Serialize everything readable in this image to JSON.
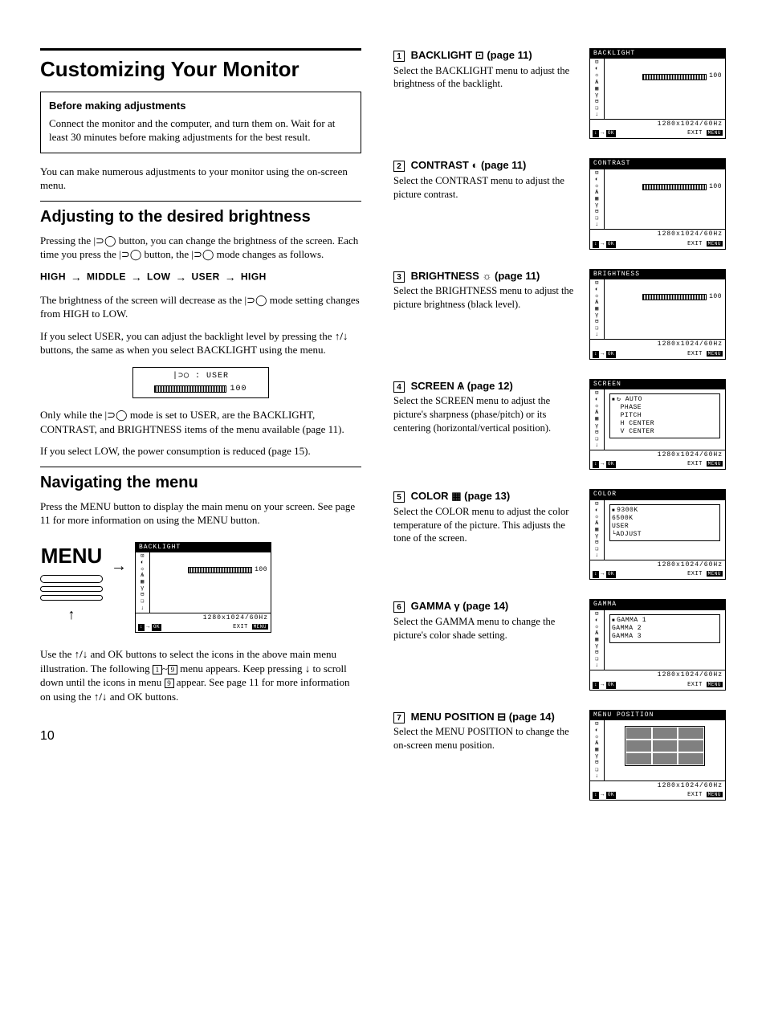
{
  "page_number": "10",
  "main_title": "Customizing Your Monitor",
  "before_box": {
    "title": "Before making adjustments",
    "body": "Connect the monitor and the computer, and turn them on. Wait for at least 30 minutes before making adjustments for the best result."
  },
  "intro_para": "You can make numerous adjustments to your monitor using the on-screen menu.",
  "section1": {
    "title": "Adjusting to the desired brightness",
    "para1_a": "Pressing the ",
    "para1_b": " button, you can change the brightness of the screen. Each time you press the ",
    "para1_c": " button, the ",
    "para1_d": " mode changes as follows.",
    "sequence": [
      "HIGH",
      "MIDDLE",
      "LOW",
      "USER",
      "HIGH"
    ],
    "para2_a": "The brightness of the screen will decrease as the ",
    "para2_b": " mode setting changes from HIGH to LOW.",
    "para3_a": "If you select USER, you can adjust the backlight level by pressing the ",
    "para3_b": " buttons, the same as when you select BACKLIGHT using the menu.",
    "user_box_label": ": USER",
    "user_box_value": "100",
    "para4_a": "Only while the ",
    "para4_b": " mode is set to USER, are the BACKLIGHT, CONTRAST, and BRIGHTNESS items of the menu available (page 11).",
    "para5": "If you select LOW, the power consumption is reduced (page 15)."
  },
  "section2": {
    "title": "Navigating the menu",
    "para1": "Press the MENU button to display the main menu on your screen. See page 11 for more information on using the MENU button.",
    "menu_label": "MENU",
    "para2_a": "Use the ",
    "para2_b": " and OK buttons to select the icons in the above main menu illustration. The following ",
    "para2_range_a": "1",
    "para2_range_b": "9",
    "para2_c": " menu appears. Keep pressing ",
    "para2_d": " to scroll down until the icons in menu ",
    "para2_e": "9",
    "para2_f": " appear. See page 11 for more information on using the ",
    "para2_g": " and OK buttons."
  },
  "osd_common": {
    "resolution": "1280x1024/60Hz",
    "ok_label": "OK",
    "exit_label": "EXIT",
    "menu_label": "MENU",
    "icons": [
      "⊡",
      "◐",
      "☼",
      "Ѧ",
      "▦",
      "γ",
      "⊟",
      "❏",
      "↓"
    ]
  },
  "menu_items": [
    {
      "num": "1",
      "heading_a": "BACKLIGHT",
      "heading_b": "(page 11)",
      "icon": "⊡",
      "desc": "Select the BACKLIGHT menu to adjust the brightness of the backlight.",
      "osd": {
        "title": "BACKLIGHT",
        "type": "slider",
        "value": "100"
      }
    },
    {
      "num": "2",
      "heading_a": "CONTRAST",
      "heading_b": "(page 11)",
      "icon": "◐",
      "desc": "Select the CONTRAST menu to adjust the picture contrast.",
      "osd": {
        "title": "CONTRAST",
        "type": "slider",
        "value": "100"
      }
    },
    {
      "num": "3",
      "heading_a": "BRIGHTNESS",
      "heading_b": "(page 11)",
      "icon": "☼",
      "desc": "Select the BRIGHTNESS menu to adjust the picture brightness (black level).",
      "osd": {
        "title": "BRIGHTNESS",
        "type": "slider",
        "value": "100"
      }
    },
    {
      "num": "4",
      "heading_a": "SCREEN",
      "heading_b": "(page 12)",
      "icon": "Ѧ",
      "desc": "Select the SCREEN menu to adjust the picture's sharpness (phase/pitch) or its centering (horizontal/vertical position).",
      "osd": {
        "title": "SCREEN",
        "type": "list",
        "items": [
          "AUTO",
          "PHASE",
          "PITCH",
          "H CENTER",
          "V CENTER"
        ],
        "selected": 0
      }
    },
    {
      "num": "5",
      "heading_a": "COLOR",
      "heading_b": "(page 13)",
      "icon": "▦",
      "desc": "Select the COLOR menu to adjust the color temperature of the picture. This adjusts the tone of the screen.",
      "osd": {
        "title": "COLOR",
        "type": "list",
        "items": [
          "9300K",
          "6500K",
          "USER",
          "└ADJUST"
        ],
        "selected": 0
      }
    },
    {
      "num": "6",
      "heading_a": "GAMMA",
      "heading_b": "(page 14)",
      "icon": "γ",
      "desc": "Select the GAMMA menu to change the picture's color shade setting.",
      "osd": {
        "title": "GAMMA",
        "type": "list",
        "items": [
          "GAMMA 1",
          "GAMMA 2",
          "GAMMA 3"
        ],
        "selected": 0
      }
    },
    {
      "num": "7",
      "heading_a": "MENU POSITION",
      "heading_b": "(page 14)",
      "icon": "⊟",
      "desc": "Select the MENU POSITION to change the on-screen menu position.",
      "osd": {
        "title": "MENU POSITION",
        "type": "grid"
      }
    }
  ]
}
